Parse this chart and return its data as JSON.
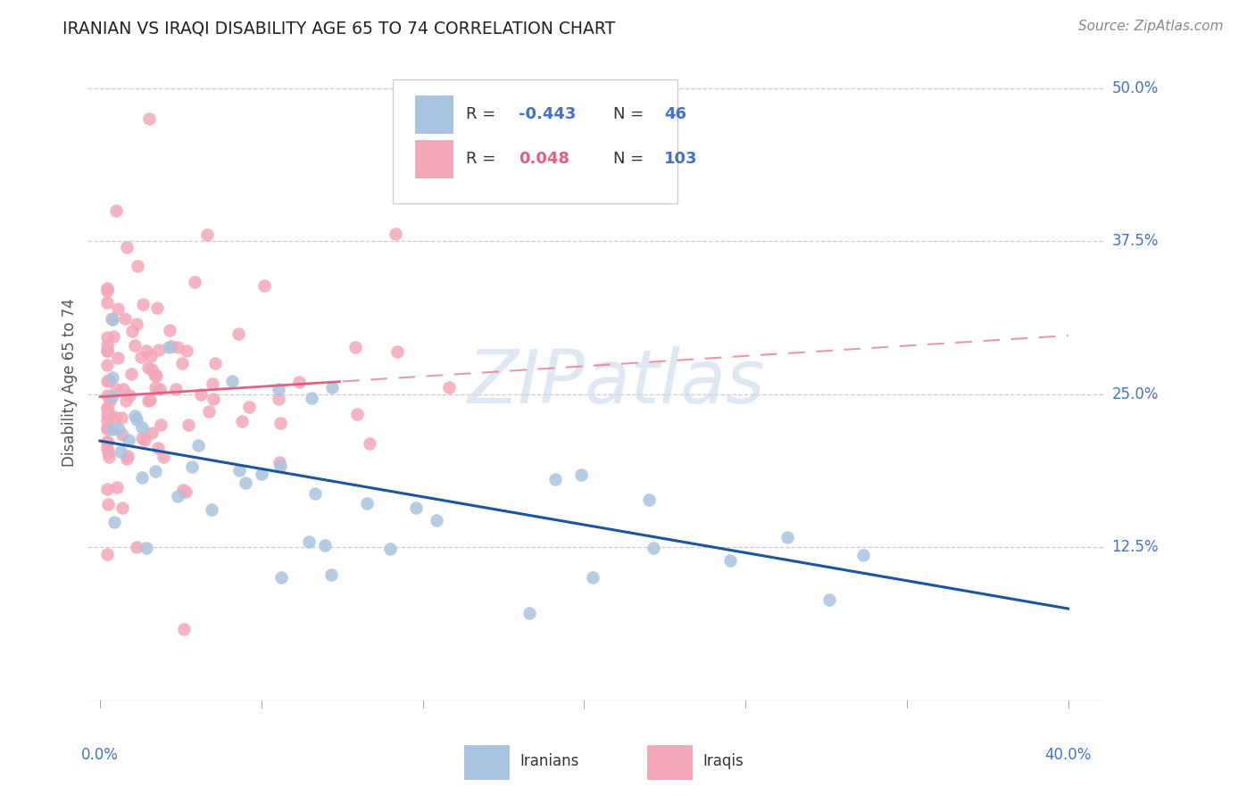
{
  "title": "IRANIAN VS IRAQI DISABILITY AGE 65 TO 74 CORRELATION CHART",
  "source": "Source: ZipAtlas.com",
  "ylabel": "Disability Age 65 to 74",
  "xlim": [
    0.0,
    0.4
  ],
  "ylim": [
    0.0,
    0.52
  ],
  "yticks": [
    0.0,
    0.125,
    0.25,
    0.375,
    0.5
  ],
  "ytick_labels": [
    "",
    "12.5%",
    "25.0%",
    "37.5%",
    "50.0%"
  ],
  "xtick_left_label": "0.0%",
  "xtick_right_label": "40.0%",
  "legend_R_iranian": "-0.443",
  "legend_N_iranian": "46",
  "legend_R_iraqi": "0.048",
  "legend_N_iraqi": "103",
  "legend_label_iranian": "Iranians",
  "legend_label_iraqi": "Iraqis",
  "iranian_dot_color": "#a8c4e0",
  "iraqi_dot_color": "#f4a7b9",
  "iranian_line_color": "#1a56a0",
  "iraqi_line_color": "#e06080",
  "grid_color": "#cccccc",
  "title_color": "#222222",
  "source_color": "#888888",
  "tick_color": "#4472c4",
  "R_neg_color": "#4472c4",
  "R_pos_color": "#e06080",
  "N_color": "#4472c4",
  "watermark_color": "#c8d8ea",
  "background": "#ffffff",
  "iranian_line_start_y": 0.212,
  "iranian_line_end_y": 0.075,
  "iraqi_line_start_y": 0.248,
  "iraqi_line_end_y": 0.298
}
